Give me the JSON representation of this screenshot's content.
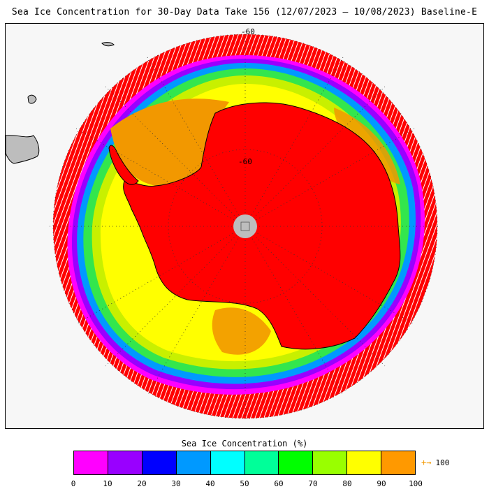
{
  "title": "Sea Ice Concentration for 30-Day Data Take 156 (12/07/2023 – 10/08/2023) Baseline-E",
  "map": {
    "projection": "south polar stereographic",
    "latitude_labels": [
      "-60",
      "-60"
    ],
    "pole_hole_color": "#bdbdbd",
    "land_color": "#bdbdbd",
    "continent_ice_color": "#ff0000"
  },
  "legend": {
    "title": "Sea Ice Concentration (%)",
    "ticks": [
      "0",
      "10",
      "20",
      "30",
      "40",
      "50",
      "60",
      "70",
      "80",
      "90",
      "100"
    ],
    "colors": [
      "#ff00ff",
      "#9900ff",
      "#0000ff",
      "#0099ff",
      "#00ffff",
      "#00ff99",
      "#00ff00",
      "#99ff00",
      "#ffff00",
      "#ff9900"
    ],
    "overflow_label": "100",
    "overflow_arrow": "+→"
  }
}
